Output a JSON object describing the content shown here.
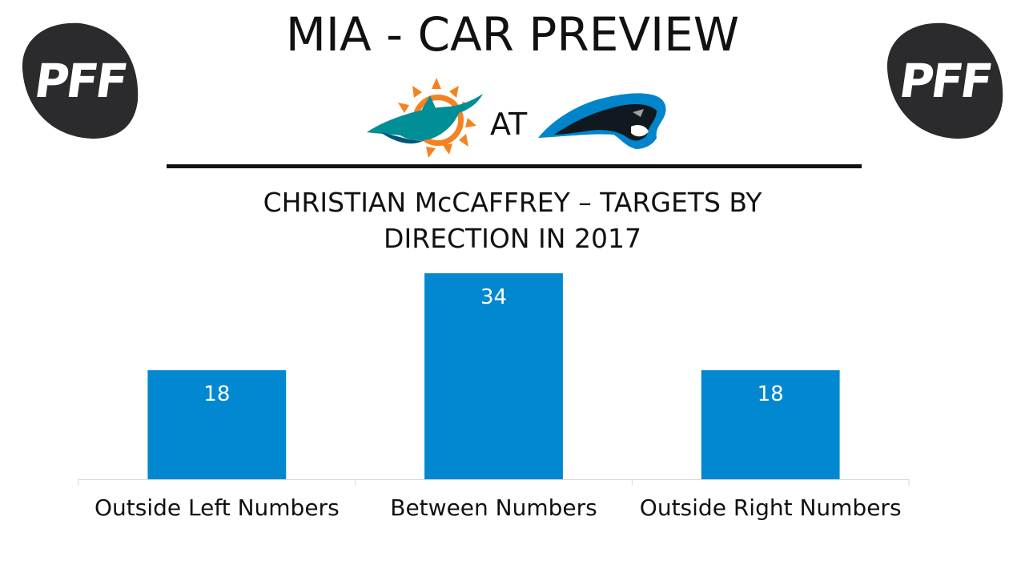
{
  "header": {
    "title": "MIA - CAR PREVIEW",
    "logo_text": "PFF",
    "logo_icon": "football-pff-logo",
    "away_team_icon": "dolphins-logo",
    "home_team_icon": "panthers-logo",
    "at_label": "AT"
  },
  "colors": {
    "bar": "#0288d1",
    "logo": "#2b2b2d",
    "dolphins_aqua": "#008e97",
    "dolphins_orange": "#f58220",
    "panthers_blue": "#0085ca",
    "panthers_black": "#101820"
  },
  "chart_data": {
    "type": "bar",
    "title_lines": [
      "CHRISTIAN McCAFFREY – TARGETS BY",
      "DIRECTION IN 2017"
    ],
    "categories": [
      "Outside Left Numbers",
      "Between Numbers",
      "Outside Right Numbers"
    ],
    "values": [
      18,
      34,
      18
    ],
    "xlabel": "",
    "ylabel": "",
    "ylim": [
      0,
      34
    ],
    "grid": false,
    "legend": "none",
    "data_labels": "inside-top"
  }
}
